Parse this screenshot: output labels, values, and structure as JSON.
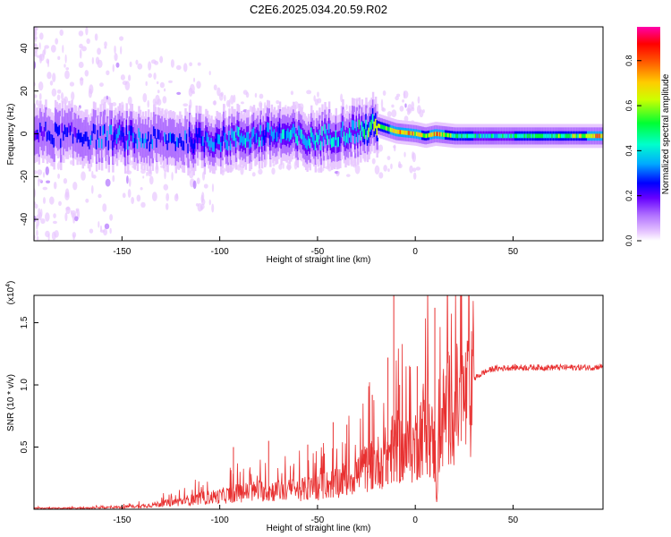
{
  "page_title": "C2E6.2025.034.20.59.R02",
  "chart_data": [
    {
      "type": "heatmap",
      "title": "C2E6.2025.034.20.59.R02",
      "xlabel": "Height of straight line (km)",
      "ylabel": "Frequency (Hz)",
      "xlim": [
        -195,
        96
      ],
      "ylim": [
        -50,
        50
      ],
      "x_ticks": [
        -150,
        -100,
        -50,
        0,
        50
      ],
      "y_ticks": [
        -40,
        -20,
        0,
        20,
        40
      ],
      "colorbar": {
        "label": "Normalized spectral amplitude",
        "range": [
          0.0,
          0.95
        ],
        "ticks": [
          0.0,
          0.2,
          0.4,
          0.6,
          0.8
        ],
        "colormap": [
          "#ffffff",
          "#e0b8ff",
          "#8800ff",
          "#0000ff",
          "#00c8ff",
          "#00ff66",
          "#ffff00",
          "#ff8800",
          "#ff0000",
          "#ff00c8"
        ]
      },
      "signal_band": {
        "x": [
          -195,
          -170,
          -150,
          -130,
          -110,
          -90,
          -70,
          -55,
          -40,
          -25,
          -20,
          -10,
          0,
          5,
          10,
          20,
          40,
          60,
          80,
          96
        ],
        "center_hz": [
          0,
          -1,
          -2,
          -3,
          -3,
          -2,
          0,
          -3,
          0,
          2,
          4,
          1,
          0,
          -1,
          0,
          -1,
          -1,
          -1,
          -1,
          -1
        ],
        "peak_amplitude": [
          0.3,
          0.35,
          0.4,
          0.35,
          0.4,
          0.45,
          0.45,
          0.5,
          0.45,
          0.6,
          0.7,
          0.8,
          0.85,
          0.7,
          0.9,
          0.6,
          0.55,
          0.6,
          0.65,
          0.9
        ]
      }
    },
    {
      "type": "line",
      "xlabel": "Height of straight line (km)",
      "ylabel": "SNR (10 * v/v)",
      "y_multiplier": "(x10^4)",
      "xlim": [
        -195,
        96
      ],
      "ylim": [
        0,
        1.72
      ],
      "x_ticks": [
        -150,
        -100,
        -50,
        0,
        50
      ],
      "y_ticks": [
        0.5,
        1.0,
        1.5
      ],
      "series": [
        {
          "color": "#e83030",
          "x": [
            -195,
            -170,
            -150,
            -140,
            -130,
            -120,
            -110,
            -100,
            -90,
            -80,
            -70,
            -60,
            -50,
            -40,
            -30,
            -25,
            -20,
            -15,
            -12,
            -10,
            -5,
            0,
            5,
            10,
            11,
            12,
            15,
            20,
            25,
            30,
            35,
            40,
            50,
            60,
            70,
            80,
            90,
            96
          ],
          "values": [
            0.01,
            0.01,
            0.02,
            0.03,
            0.05,
            0.07,
            0.1,
            0.12,
            0.15,
            0.17,
            0.17,
            0.18,
            0.2,
            0.25,
            0.32,
            0.38,
            0.42,
            0.48,
            0.55,
            0.58,
            0.52,
            0.58,
            0.8,
            0.55,
            0.08,
            0.6,
            0.9,
            0.95,
            1.0,
            1.05,
            1.1,
            1.13,
            1.14,
            1.14,
            1.14,
            1.14,
            1.14,
            1.15
          ],
          "spikes": [
            {
              "x": -93,
              "y": 0.5
            },
            {
              "x": -75,
              "y": 0.55
            },
            {
              "x": -55,
              "y": 0.52
            },
            {
              "x": -42,
              "y": 0.7
            },
            {
              "x": -35,
              "y": 0.68
            },
            {
              "x": -22,
              "y": 0.92
            },
            {
              "x": -14,
              "y": 1.22
            },
            {
              "x": -11,
              "y": 1.72
            },
            {
              "x": -8,
              "y": 1.0
            },
            {
              "x": 1,
              "y": 1.15
            },
            {
              "x": 10,
              "y": 1.62
            }
          ]
        }
      ]
    }
  ]
}
